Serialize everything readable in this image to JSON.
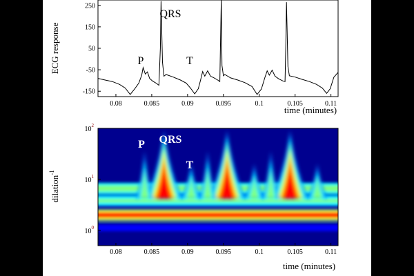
{
  "chart_data": [
    {
      "type": "line",
      "xlabel": "time (minutes)",
      "ylabel": "ECG response",
      "xlim": [
        0.0775,
        0.111
      ],
      "ylim": [
        -175,
        275
      ],
      "xticks": [
        "0.08",
        "0.085",
        "0.09",
        "0.095",
        "0.1",
        "0.105",
        "0.11"
      ],
      "xtick_values": [
        0.08,
        0.085,
        0.09,
        0.095,
        0.1,
        0.105,
        0.11
      ],
      "yticks": [
        "250",
        "150",
        "50",
        "-50",
        "-150"
      ],
      "ytick_values": [
        250,
        150,
        50,
        -50,
        -150
      ],
      "series": [
        {
          "x": [
            0.0775,
            0.0785,
            0.0795,
            0.0805,
            0.0813,
            0.082,
            0.0826,
            0.0832,
            0.0836,
            0.0838,
            0.0841,
            0.0844,
            0.0847,
            0.0851,
            0.0856,
            0.086,
            0.0862,
            0.0863,
            0.0865,
            0.0867,
            0.087,
            0.088,
            0.089,
            0.0898,
            0.0904,
            0.091,
            0.0915,
            0.0918,
            0.0921,
            0.0924,
            0.0928,
            0.0932,
            0.0937,
            0.0942,
            0.0945,
            0.0946,
            0.0947,
            0.0948,
            0.095,
            0.0952,
            0.096,
            0.097,
            0.098,
            0.099,
            0.0997,
            0.1003,
            0.1008,
            0.1011,
            0.1014,
            0.1018,
            0.1022,
            0.1027,
            0.1033,
            0.1036,
            0.1037,
            0.1038,
            0.104,
            0.1042,
            0.105,
            0.106,
            0.107,
            0.108,
            0.1088,
            0.1094,
            0.1099,
            0.1104,
            0.111
          ],
          "y": [
            -90,
            -98,
            -105,
            -118,
            -135,
            -165,
            -140,
            -112,
            -75,
            -40,
            -70,
            -60,
            -90,
            -102,
            -112,
            -122,
            50,
            270,
            -15,
            -80,
            -72,
            -84,
            -98,
            -112,
            -135,
            -162,
            -138,
            -100,
            -58,
            -80,
            -55,
            -80,
            -88,
            -98,
            -105,
            85,
            280,
            -30,
            -78,
            -72,
            -88,
            -98,
            -110,
            -128,
            -165,
            -140,
            -85,
            -55,
            -75,
            -52,
            -80,
            -92,
            -102,
            -105,
            60,
            265,
            -35,
            -78,
            -84,
            -95,
            -105,
            -118,
            -135,
            -160,
            -138,
            -85,
            -62
          ]
        }
      ],
      "annotations": [
        "P",
        "QRS",
        "T"
      ]
    },
    {
      "type": "heatmap",
      "xlabel": "time (minutes)",
      "ylabel": "dilation",
      "ylabel_sup": "-1",
      "xlim": [
        0.0775,
        0.111
      ],
      "xticks": [
        "0.08",
        "0.085",
        "0.09",
        "0.095",
        "0.1",
        "0.105",
        "0.11"
      ],
      "xtick_values": [
        0.08,
        0.085,
        0.09,
        0.095,
        0.1,
        0.105,
        0.11
      ],
      "yticks": [
        {
          "base": "10",
          "exp": "2"
        },
        {
          "base": "10",
          "exp": "1"
        },
        {
          "base": "10",
          "exp": "0"
        }
      ],
      "ytick_log10": [
        2,
        1,
        0
      ],
      "ylim_log10": [
        -0.3,
        2.0
      ],
      "colormap": [
        "#00008f",
        "#0000ff",
        "#0080ff",
        "#00ffff",
        "#80ff80",
        "#ffff00",
        "#ff8000",
        "#ff0000",
        "#800000"
      ],
      "background_color": "#00008f",
      "qrs_times": [
        0.0867,
        0.0955,
        0.1043
      ],
      "p_times": [
        0.084,
        0.0928,
        0.1016
      ],
      "t_times": [
        0.0905,
        0.0993,
        0.1081
      ],
      "bands_log10": [
        {
          "center": 0.82,
          "level": 0.55
        },
        {
          "center": 0.58,
          "level": 0.45
        },
        {
          "center": 0.3,
          "level": 0.92
        },
        {
          "center": 0.05,
          "level": 0.08
        }
      ],
      "annotations": [
        "P",
        "QRS",
        "T"
      ]
    }
  ]
}
